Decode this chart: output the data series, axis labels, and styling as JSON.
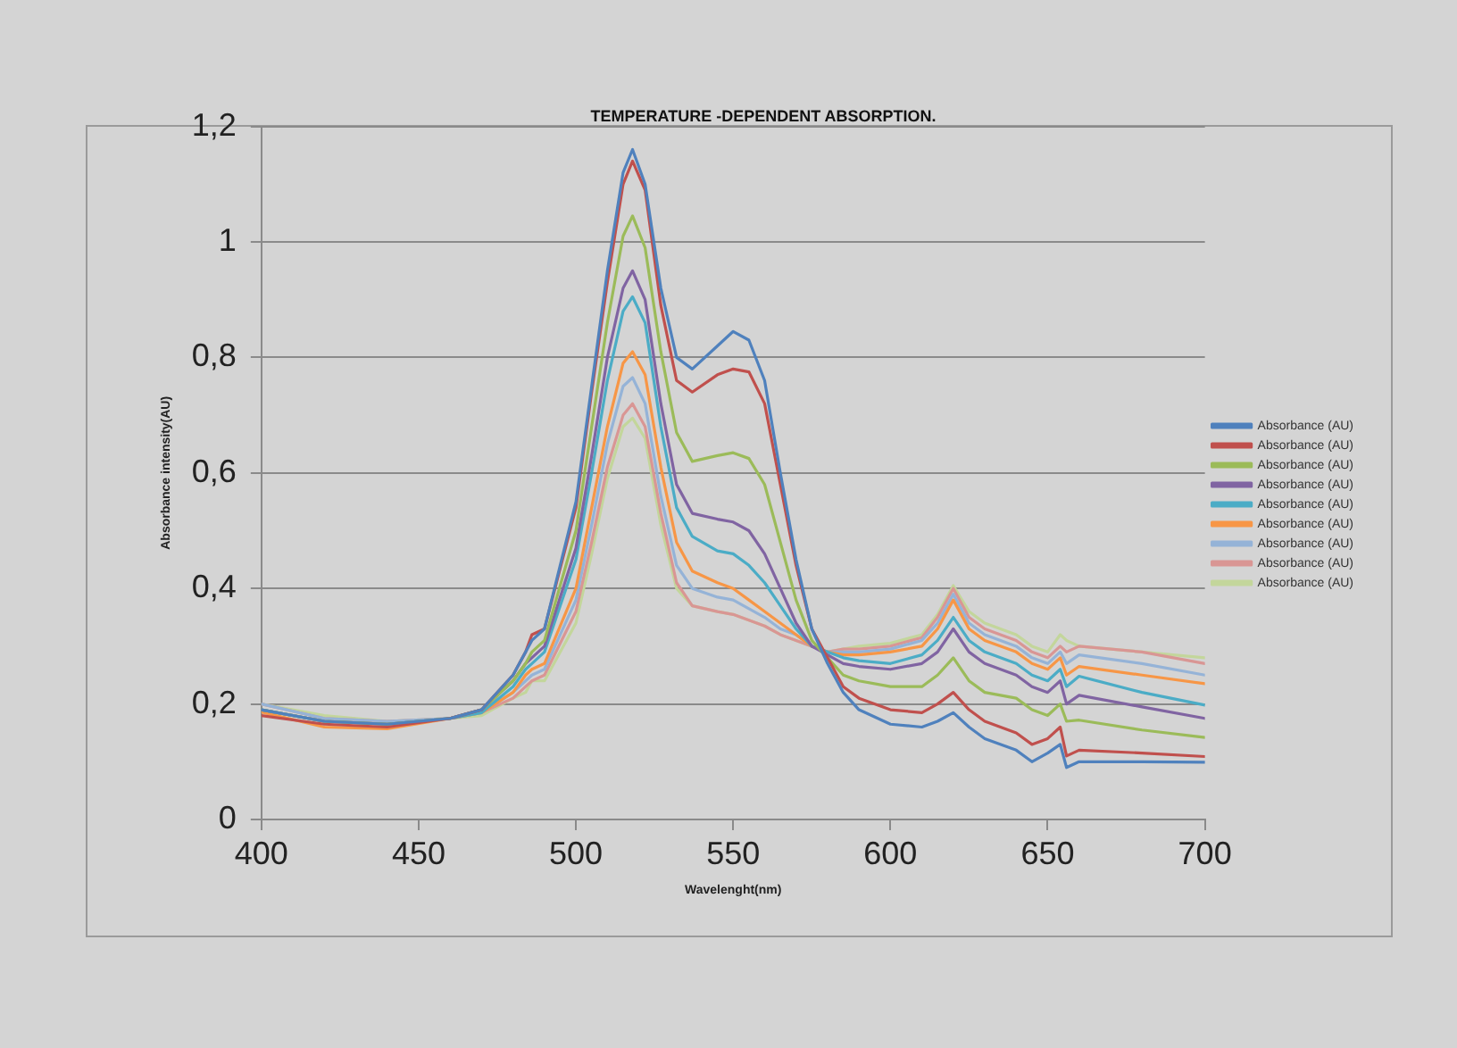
{
  "chart_data": {
    "type": "line",
    "title": "TEMPERATURE -DEPENDENT ABSORPTION.",
    "xlabel": "Wavelenght(nm)",
    "ylabel": "Absorbance intensity(AU)",
    "x": [
      400,
      420,
      440,
      460,
      470,
      480,
      484,
      486,
      490,
      500,
      505,
      510,
      515,
      518,
      522,
      527,
      532,
      537,
      545,
      550,
      555,
      560,
      565,
      570,
      575,
      580,
      585,
      590,
      600,
      610,
      615,
      620,
      625,
      630,
      640,
      645,
      650,
      654,
      656,
      660,
      680,
      700
    ],
    "series": [
      {
        "name": "Absorbance (AU)",
        "color": "#4f81bd",
        "values": [
          0.19,
          0.17,
          0.165,
          0.175,
          0.19,
          0.25,
          0.29,
          0.31,
          0.33,
          0.55,
          0.75,
          0.95,
          1.12,
          1.16,
          1.1,
          0.92,
          0.8,
          0.78,
          0.82,
          0.845,
          0.83,
          0.76,
          0.6,
          0.45,
          0.33,
          0.27,
          0.22,
          0.19,
          0.165,
          0.16,
          0.17,
          0.185,
          0.16,
          0.14,
          0.12,
          0.1,
          0.115,
          0.13,
          0.09,
          0.1,
          0.1,
          0.099
        ]
      },
      {
        "name": "Absorbance (AU)",
        "color": "#c0504d",
        "values": [
          0.18,
          0.165,
          0.16,
          0.175,
          0.19,
          0.25,
          0.29,
          0.32,
          0.33,
          0.54,
          0.74,
          0.93,
          1.1,
          1.14,
          1.09,
          0.89,
          0.76,
          0.74,
          0.77,
          0.78,
          0.775,
          0.72,
          0.58,
          0.44,
          0.33,
          0.28,
          0.23,
          0.21,
          0.19,
          0.185,
          0.2,
          0.22,
          0.19,
          0.17,
          0.15,
          0.13,
          0.14,
          0.16,
          0.11,
          0.12,
          0.115,
          0.109
        ]
      },
      {
        "name": "Absorbance (AU)",
        "color": "#9bbb59",
        "values": [
          0.19,
          0.17,
          0.165,
          0.175,
          0.19,
          0.24,
          0.27,
          0.29,
          0.31,
          0.5,
          0.68,
          0.86,
          1.01,
          1.045,
          0.99,
          0.81,
          0.67,
          0.62,
          0.63,
          0.635,
          0.625,
          0.58,
          0.48,
          0.38,
          0.31,
          0.28,
          0.25,
          0.24,
          0.23,
          0.23,
          0.25,
          0.28,
          0.24,
          0.22,
          0.21,
          0.19,
          0.18,
          0.2,
          0.17,
          0.172,
          0.155,
          0.142
        ]
      },
      {
        "name": "Absorbance (AU)",
        "color": "#8064a2",
        "values": [
          0.19,
          0.17,
          0.165,
          0.175,
          0.19,
          0.24,
          0.27,
          0.28,
          0.3,
          0.47,
          0.63,
          0.8,
          0.92,
          0.95,
          0.9,
          0.72,
          0.58,
          0.53,
          0.52,
          0.515,
          0.5,
          0.46,
          0.4,
          0.34,
          0.3,
          0.285,
          0.27,
          0.265,
          0.26,
          0.27,
          0.29,
          0.33,
          0.29,
          0.27,
          0.25,
          0.23,
          0.22,
          0.24,
          0.2,
          0.215,
          0.195,
          0.175
        ]
      },
      {
        "name": "Absorbance (AU)",
        "color": "#4bacc6",
        "values": [
          0.19,
          0.17,
          0.165,
          0.175,
          0.185,
          0.23,
          0.26,
          0.27,
          0.29,
          0.45,
          0.6,
          0.76,
          0.88,
          0.905,
          0.86,
          0.68,
          0.54,
          0.49,
          0.465,
          0.46,
          0.44,
          0.41,
          0.37,
          0.33,
          0.3,
          0.29,
          0.28,
          0.275,
          0.27,
          0.285,
          0.31,
          0.35,
          0.31,
          0.29,
          0.27,
          0.25,
          0.24,
          0.26,
          0.23,
          0.248,
          0.22,
          0.198
        ]
      },
      {
        "name": "Absorbance (AU)",
        "color": "#f79646",
        "values": [
          0.186,
          0.16,
          0.157,
          0.175,
          0.185,
          0.22,
          0.25,
          0.26,
          0.27,
          0.4,
          0.54,
          0.68,
          0.79,
          0.81,
          0.77,
          0.61,
          0.48,
          0.43,
          0.41,
          0.4,
          0.38,
          0.36,
          0.34,
          0.32,
          0.3,
          0.29,
          0.285,
          0.285,
          0.29,
          0.3,
          0.33,
          0.38,
          0.33,
          0.31,
          0.29,
          0.27,
          0.26,
          0.28,
          0.25,
          0.265,
          0.25,
          0.235
        ]
      },
      {
        "name": "Absorbance (AU)",
        "color": "#95b3d7",
        "values": [
          0.2,
          0.175,
          0.17,
          0.175,
          0.185,
          0.22,
          0.24,
          0.25,
          0.26,
          0.38,
          0.51,
          0.65,
          0.75,
          0.765,
          0.72,
          0.56,
          0.44,
          0.4,
          0.385,
          0.38,
          0.365,
          0.35,
          0.33,
          0.32,
          0.3,
          0.29,
          0.29,
          0.29,
          0.295,
          0.31,
          0.34,
          0.39,
          0.34,
          0.32,
          0.3,
          0.28,
          0.27,
          0.29,
          0.27,
          0.285,
          0.27,
          0.25
        ]
      },
      {
        "name": "Absorbance (AU)",
        "color": "#d99694",
        "values": [
          0.2,
          0.175,
          0.17,
          0.175,
          0.185,
          0.21,
          0.23,
          0.24,
          0.25,
          0.36,
          0.48,
          0.61,
          0.7,
          0.72,
          0.68,
          0.53,
          0.41,
          0.37,
          0.36,
          0.355,
          0.345,
          0.335,
          0.32,
          0.31,
          0.3,
          0.29,
          0.295,
          0.295,
          0.3,
          0.315,
          0.35,
          0.4,
          0.35,
          0.33,
          0.31,
          0.29,
          0.28,
          0.3,
          0.29,
          0.3,
          0.29,
          0.27
        ]
      },
      {
        "name": "Absorbance (AU)",
        "color": "#c3d69b",
        "values": [
          0.2,
          0.18,
          0.17,
          0.175,
          0.18,
          0.21,
          0.22,
          0.24,
          0.24,
          0.34,
          0.46,
          0.59,
          0.68,
          0.695,
          0.66,
          0.51,
          0.4,
          0.37,
          0.36,
          0.355,
          0.345,
          0.335,
          0.32,
          0.31,
          0.3,
          0.29,
          0.295,
          0.3,
          0.305,
          0.32,
          0.355,
          0.405,
          0.36,
          0.34,
          0.32,
          0.3,
          0.29,
          0.32,
          0.31,
          0.3,
          0.29,
          0.28
        ]
      }
    ],
    "xlim": [
      400,
      700
    ],
    "xticks": [
      400,
      450,
      500,
      550,
      600,
      650,
      700
    ],
    "ylim": [
      0,
      1.2
    ],
    "yticks": [
      0,
      {
        "value": 0.2,
        "label": "0,2"
      },
      {
        "value": 0.4,
        "label": "0,4"
      },
      {
        "value": 0.6,
        "label": "0,6"
      },
      {
        "value": 0.8,
        "label": "0,8"
      },
      1,
      {
        "value": 1.2,
        "label": "1,2"
      }
    ],
    "grid": "y",
    "legend": "right",
    "marker": "none",
    "line_style": "solid"
  }
}
